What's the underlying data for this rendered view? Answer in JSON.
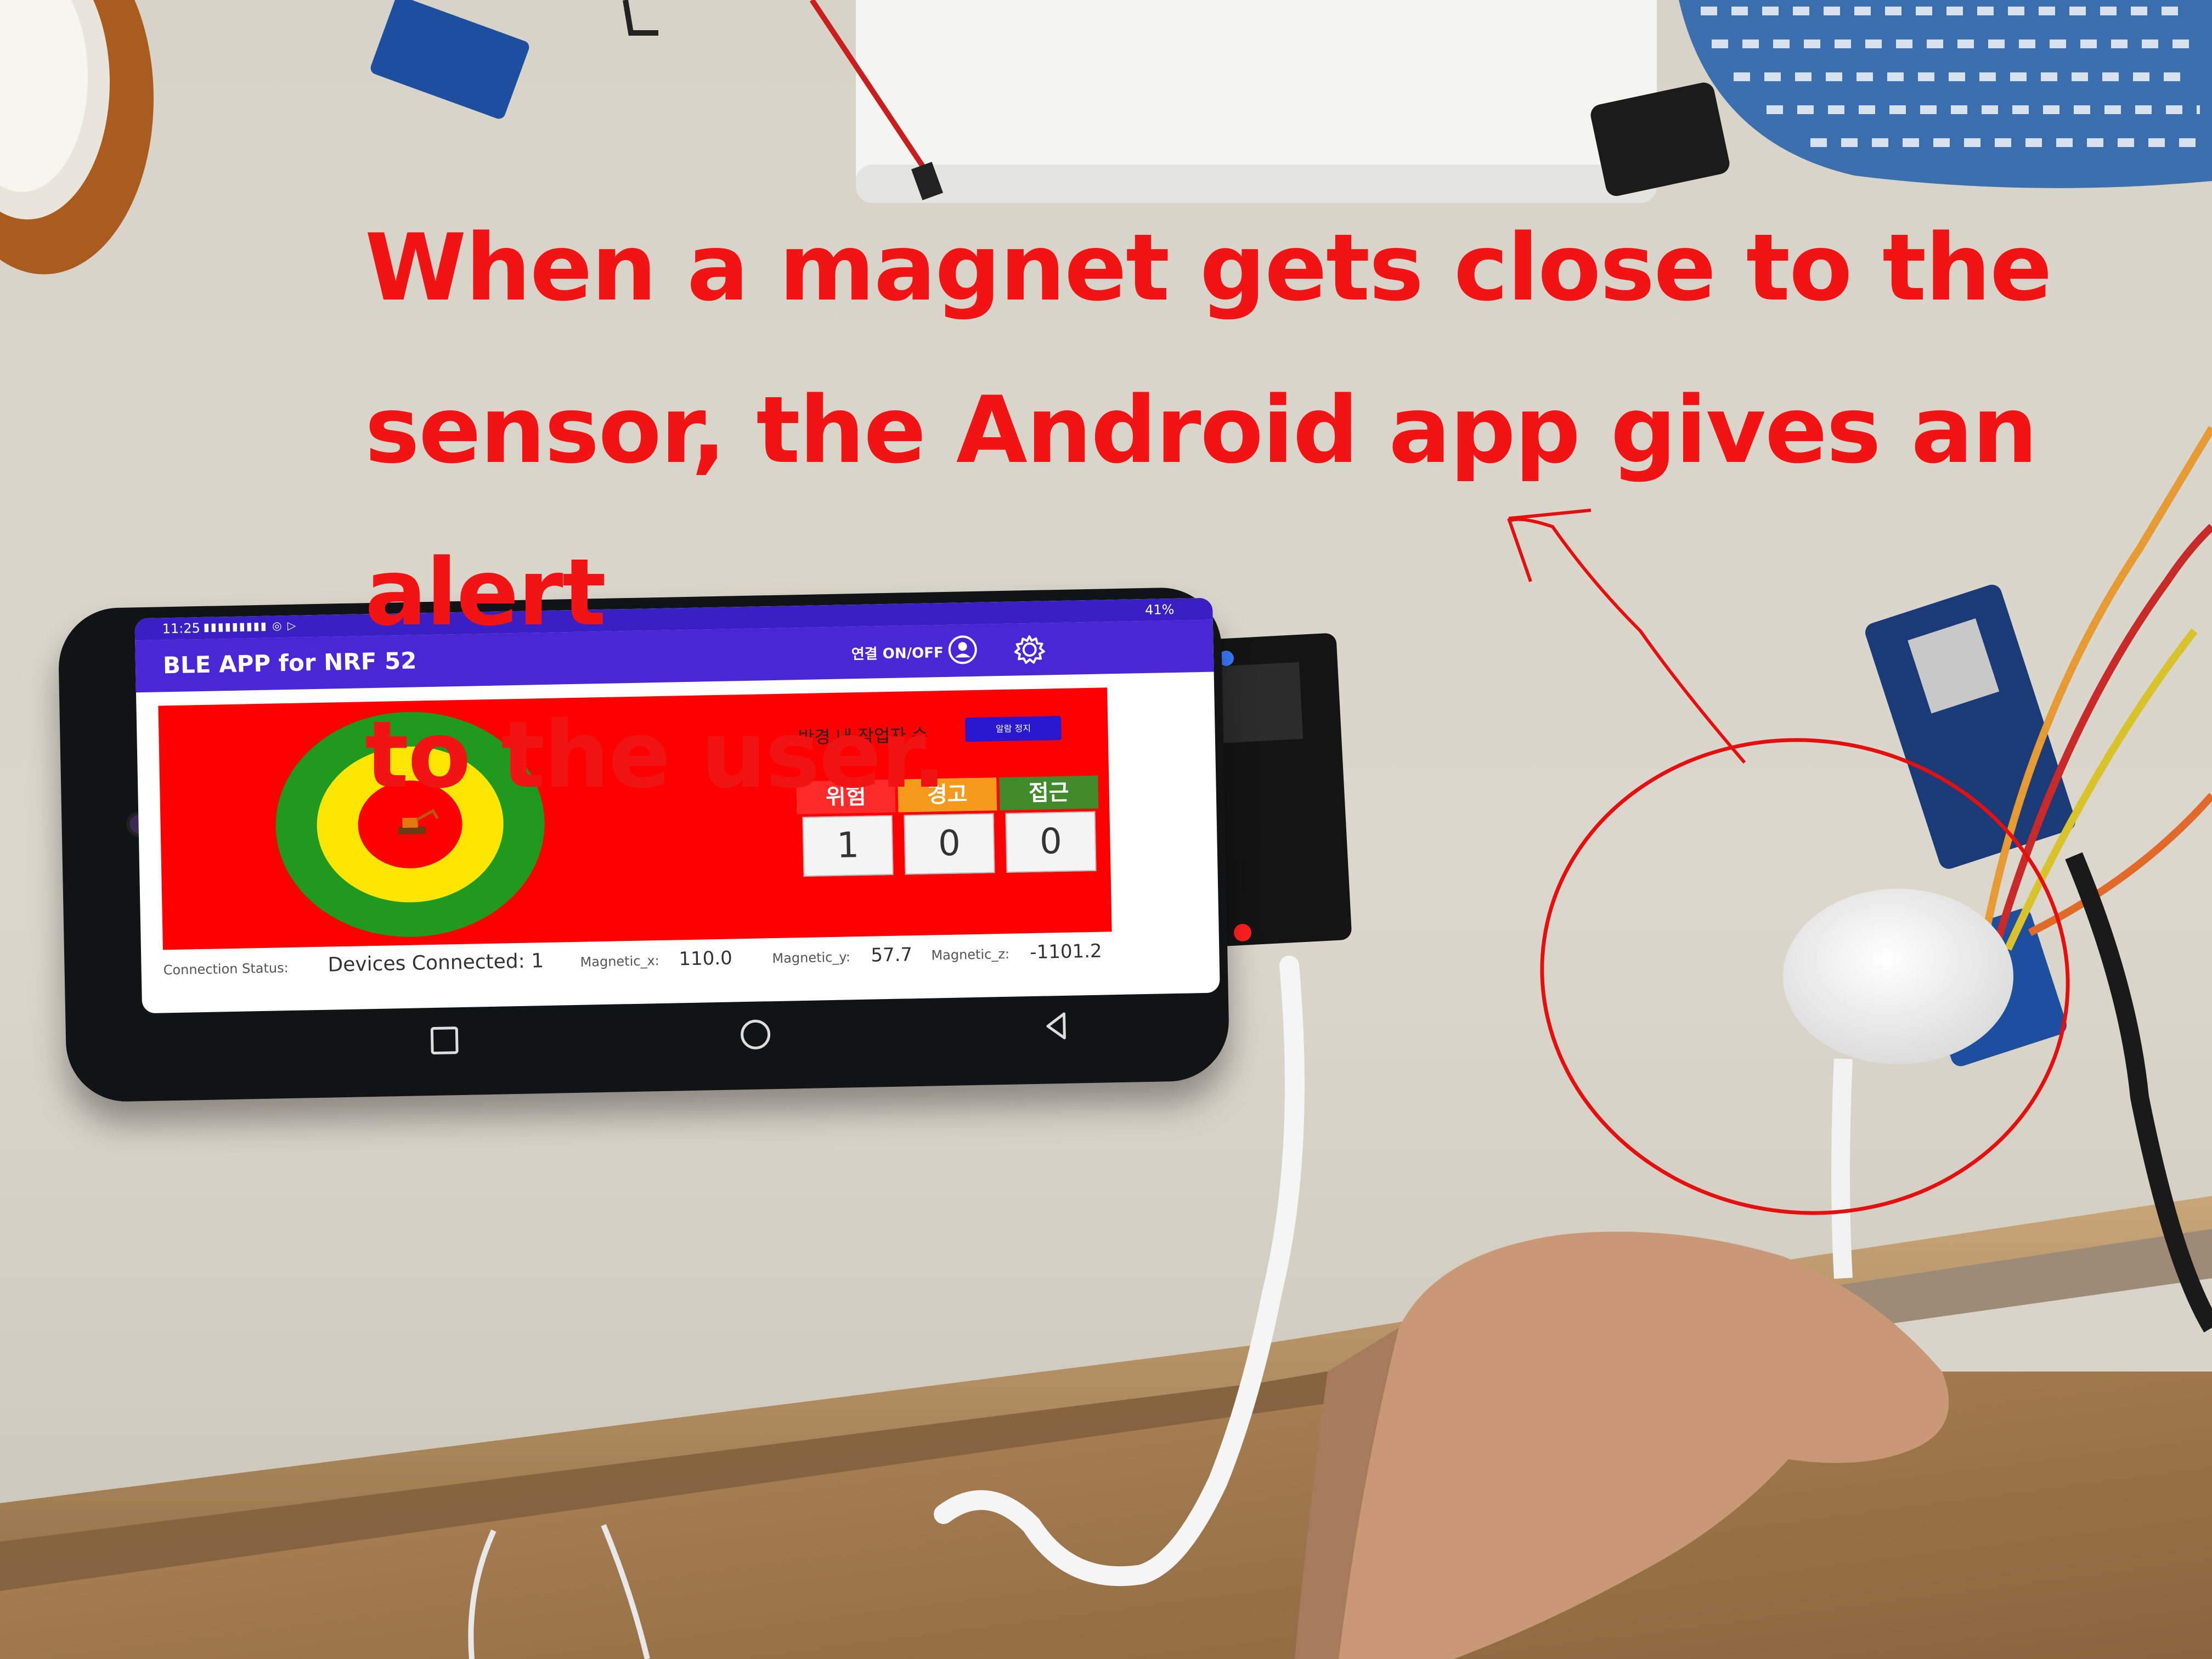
{
  "annotation": {
    "line1": "When a magnet gets close to the",
    "line2": "sensor, the Android app gives an alert",
    "line3": "to the user."
  },
  "phone": {
    "status_bar": {
      "time": "11:25",
      "battery": "41%"
    },
    "app_bar": {
      "title": "BLE APP for NRF 52",
      "connection_toggle": "연결 ON/OFF",
      "icons": [
        "person-icon",
        "gear-icon"
      ]
    },
    "canvas": {
      "workers_label": "반경 내 작업자 수",
      "alarm_button": "알람 정지",
      "zones": [
        {
          "label": "위험",
          "value": "1",
          "color": "#ff2a2a"
        },
        {
          "label": "경고",
          "value": "0",
          "color": "#f59a1c"
        },
        {
          "label": "접근",
          "value": "0",
          "color": "#3f8a2a"
        }
      ],
      "rings": {
        "outer": "#1f9a1f",
        "middle": "#ffe600",
        "inner": "#ff0000"
      }
    },
    "info": {
      "connection_label": "Connection Status:",
      "connection_value": "Devices Connected: 1",
      "magnetic_x_label": "Magnetic_x:",
      "magnetic_x_value": "110.0",
      "magnetic_y_label": "Magnetic_y:",
      "magnetic_y_value": "57.7",
      "magnetic_z_label": "Magnetic_z:",
      "magnetic_z_value": "-1101.2"
    },
    "nav": [
      "recents-icon",
      "home-icon",
      "back-icon"
    ]
  },
  "colors": {
    "annotation": "#f01414",
    "app_bar": "#4a26d6",
    "canvas": "#ff0000"
  }
}
